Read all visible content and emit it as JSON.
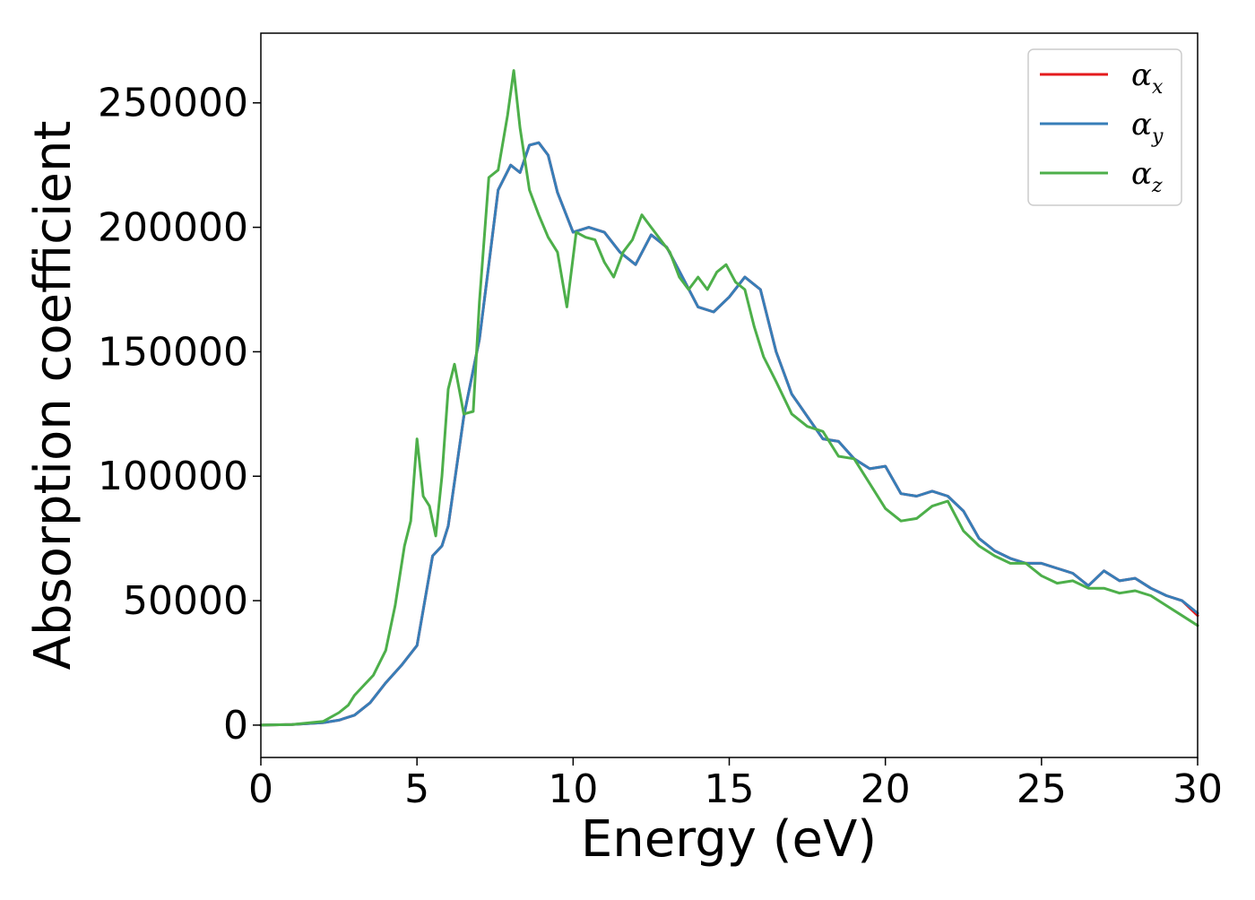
{
  "chart_data": {
    "type": "line",
    "xlabel": "Energy (eV)",
    "ylabel": "Absorption coefficient",
    "xlim": [
      0,
      30
    ],
    "ylim": [
      -13000,
      278000
    ],
    "x_ticks": [
      0,
      5,
      10,
      15,
      20,
      25,
      30
    ],
    "y_ticks": [
      0,
      50000,
      100000,
      150000,
      200000,
      250000
    ],
    "grid": false,
    "legend_position": "top-right",
    "series": [
      {
        "name": "α",
        "subscript": "x",
        "color": "#e41a1c",
        "x": [
          0,
          1,
          2,
          2.5,
          3,
          3.5,
          4,
          4.5,
          5,
          5.5,
          5.8,
          6,
          6.5,
          7,
          7.3,
          7.6,
          8,
          8.3,
          8.6,
          8.9,
          9.2,
          9.5,
          10,
          10.5,
          11,
          11.5,
          12,
          12.5,
          13,
          13.5,
          14,
          14.5,
          15,
          15.5,
          16,
          16.5,
          17,
          17.5,
          18,
          18.5,
          19,
          19.5,
          20,
          20.5,
          21,
          21.5,
          22,
          22.5,
          23,
          23.5,
          24,
          24.5,
          25,
          25.5,
          26,
          26.5,
          27,
          27.5,
          28,
          28.5,
          29,
          29.5,
          30
        ],
        "y": [
          0,
          200,
          1000,
          2000,
          4000,
          9000,
          17000,
          24000,
          32000,
          68000,
          72000,
          80000,
          124000,
          155000,
          185000,
          215000,
          225000,
          222000,
          233000,
          234000,
          229000,
          214000,
          198000,
          200000,
          198000,
          190000,
          185000,
          197000,
          192000,
          180000,
          168000,
          166000,
          172000,
          180000,
          175000,
          150000,
          133000,
          124000,
          115000,
          114000,
          107000,
          103000,
          104000,
          93000,
          92000,
          94000,
          92000,
          86000,
          75000,
          70000,
          67000,
          65000,
          65000,
          63000,
          61000,
          56000,
          62000,
          58000,
          59000,
          55000,
          52000,
          50000,
          44000
        ]
      },
      {
        "name": "α",
        "subscript": "y",
        "color": "#377eb8",
        "x": [
          0,
          1,
          2,
          2.5,
          3,
          3.5,
          4,
          4.5,
          5,
          5.5,
          5.8,
          6,
          6.5,
          7,
          7.3,
          7.6,
          8,
          8.3,
          8.6,
          8.9,
          9.2,
          9.5,
          10,
          10.5,
          11,
          11.5,
          12,
          12.5,
          13,
          13.5,
          14,
          14.5,
          15,
          15.5,
          16,
          16.5,
          17,
          17.5,
          18,
          18.5,
          19,
          19.5,
          20,
          20.5,
          21,
          21.5,
          22,
          22.5,
          23,
          23.5,
          24,
          24.5,
          25,
          25.5,
          26,
          26.5,
          27,
          27.5,
          28,
          28.5,
          29,
          29.5,
          30
        ],
        "y": [
          0,
          200,
          1000,
          2000,
          4000,
          9000,
          17000,
          24000,
          32000,
          68000,
          72000,
          80000,
          124000,
          155000,
          185000,
          215000,
          225000,
          222000,
          233000,
          234000,
          229000,
          214000,
          198000,
          200000,
          198000,
          190000,
          185000,
          197000,
          192000,
          180000,
          168000,
          166000,
          172000,
          180000,
          175000,
          150000,
          133000,
          124000,
          115000,
          114000,
          107000,
          103000,
          104000,
          93000,
          92000,
          94000,
          92000,
          86000,
          75000,
          70000,
          67000,
          65000,
          65000,
          63000,
          61000,
          56000,
          62000,
          58000,
          59000,
          55000,
          52000,
          50000,
          45000
        ]
      },
      {
        "name": "α",
        "subscript": "z",
        "color": "#4daf4a",
        "x": [
          0,
          1,
          2,
          2.5,
          2.8,
          3,
          3.3,
          3.6,
          4,
          4.3,
          4.6,
          4.8,
          5,
          5.2,
          5.4,
          5.6,
          5.8,
          6,
          6.2,
          6.5,
          6.8,
          7,
          7.3,
          7.6,
          7.9,
          8.1,
          8.3,
          8.6,
          8.9,
          9.2,
          9.5,
          9.8,
          10.1,
          10.4,
          10.7,
          11,
          11.3,
          11.6,
          11.9,
          12.2,
          12.5,
          12.8,
          13.1,
          13.4,
          13.7,
          14,
          14.3,
          14.6,
          14.9,
          15.2,
          15.5,
          15.8,
          16.1,
          16.5,
          17,
          17.5,
          18,
          18.5,
          19,
          19.5,
          20,
          20.5,
          21,
          21.5,
          22,
          22.5,
          23,
          23.5,
          24,
          24.5,
          25,
          25.5,
          26,
          26.5,
          27,
          27.5,
          28,
          28.5,
          29,
          29.5,
          30
        ],
        "y": [
          0,
          200,
          1500,
          5000,
          8000,
          12000,
          16000,
          20000,
          30000,
          48000,
          72000,
          82000,
          115000,
          92000,
          88000,
          76000,
          100000,
          135000,
          145000,
          125000,
          126000,
          170000,
          220000,
          223000,
          245000,
          263000,
          240000,
          215000,
          205000,
          196000,
          190000,
          168000,
          198000,
          196000,
          195000,
          186000,
          180000,
          190000,
          195000,
          205000,
          200000,
          195000,
          190000,
          180000,
          175000,
          180000,
          175000,
          182000,
          185000,
          178000,
          175000,
          160000,
          148000,
          138000,
          125000,
          120000,
          118000,
          108000,
          107000,
          97000,
          87000,
          82000,
          83000,
          88000,
          90000,
          78000,
          72000,
          68000,
          65000,
          65000,
          60000,
          57000,
          58000,
          55000,
          55000,
          53000,
          54000,
          52000,
          48000,
          44000,
          40000
        ]
      }
    ]
  }
}
